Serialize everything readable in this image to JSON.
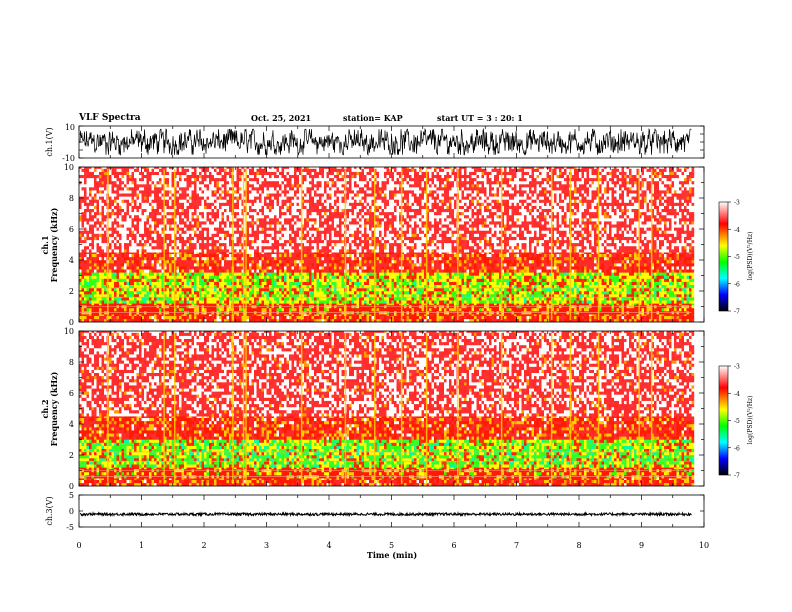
{
  "header": {
    "title": "VLF Spectra",
    "date": "Oct. 25, 2021",
    "station": "station= KAP",
    "start": "start  UT  =   3  : 20: 1"
  },
  "chart_data": [
    {
      "type": "line",
      "panel": "ch1_waveform",
      "ylabel": "ch.1(V)",
      "ylim": [
        -10,
        10
      ],
      "yticklabels": [
        "10",
        "-10"
      ],
      "xlim": [
        0,
        10
      ],
      "note": "noisy waveform oscillating roughly between -8 V and +8 V over 0 to 9.8 min"
    },
    {
      "type": "heatmap",
      "panel": "ch1_spectrogram",
      "ylabel": "ch.1\nFrequency  (kHz)",
      "ylim": [
        0,
        10
      ],
      "yticks": [
        0,
        2,
        4,
        6,
        8,
        10
      ],
      "xlim": [
        0,
        10
      ],
      "data_extent_min": 9.8,
      "colorbar": {
        "label": "log(PSD)(V²/Hz)",
        "range": [
          -7,
          -3
        ],
        "ticks": [
          -3,
          -4,
          -5,
          -6,
          -7
        ]
      },
      "band_levels": [
        {
          "f_range": [
            0,
            0.5
          ],
          "level": -4.0
        },
        {
          "f_range": [
            0.5,
            1.2
          ],
          "level": -4.3
        },
        {
          "f_range": [
            1.2,
            3.2
          ],
          "level": -4.9
        },
        {
          "f_range": [
            3.2,
            4.5
          ],
          "level": -3.8
        },
        {
          "f_range": [
            4.5,
            10
          ],
          "level": -3.3
        }
      ],
      "spike_times_min": [
        0.45,
        1.35,
        1.52,
        2.45,
        2.62,
        2.66,
        3.55,
        4.25,
        4.72,
        5.15,
        5.55,
        6.05,
        6.75,
        7.55,
        7.85,
        8.3,
        8.95,
        9.15
      ]
    },
    {
      "type": "heatmap",
      "panel": "ch2_spectrogram",
      "ylabel": "ch.2\nFrequency  (kHz)",
      "ylim": [
        0,
        10
      ],
      "yticks": [
        0,
        2,
        4,
        6,
        8,
        10
      ],
      "xlim": [
        0,
        10
      ],
      "data_extent_min": 9.8,
      "colorbar": {
        "label": "log(PSD)(V²/Hz)",
        "range": [
          -7,
          -3
        ],
        "ticks": [
          -3,
          -4,
          -5,
          -6,
          -7
        ]
      },
      "band_levels": [
        {
          "f_range": [
            0,
            0.5
          ],
          "level": -4.0
        },
        {
          "f_range": [
            0.5,
            1.2
          ],
          "level": -4.4
        },
        {
          "f_range": [
            1.2,
            3.0
          ],
          "level": -5.1
        },
        {
          "f_range": [
            3.0,
            4.5
          ],
          "level": -3.9
        },
        {
          "f_range": [
            4.5,
            10
          ],
          "level": -3.35
        }
      ],
      "spike_times_min": [
        0.45,
        1.35,
        1.52,
        2.45,
        2.62,
        2.66,
        3.55,
        4.25,
        4.72,
        5.15,
        5.55,
        6.05,
        6.75,
        7.55,
        7.85,
        8.3,
        8.95,
        9.15
      ]
    },
    {
      "type": "line",
      "panel": "ch3_waveform",
      "ylabel": "ch.3(V)",
      "ylim": [
        -5,
        5
      ],
      "yticks": [
        5,
        0,
        -5
      ],
      "xlabel": "Time  (min)",
      "xlim": [
        0,
        10
      ],
      "xticks": [
        0,
        1,
        2,
        3,
        4,
        5,
        6,
        7,
        8,
        9,
        10
      ],
      "note": "nearly constant signal around -1 V with small oscillation from 0 to 9.8 min"
    }
  ],
  "colors": {
    "background": "#ffffff",
    "trace": "#000000",
    "colormap": [
      "#ffffff",
      "#ff0000",
      "#ffff00",
      "#00ff00",
      "#00ffff",
      "#0000ff",
      "#000000"
    ]
  }
}
